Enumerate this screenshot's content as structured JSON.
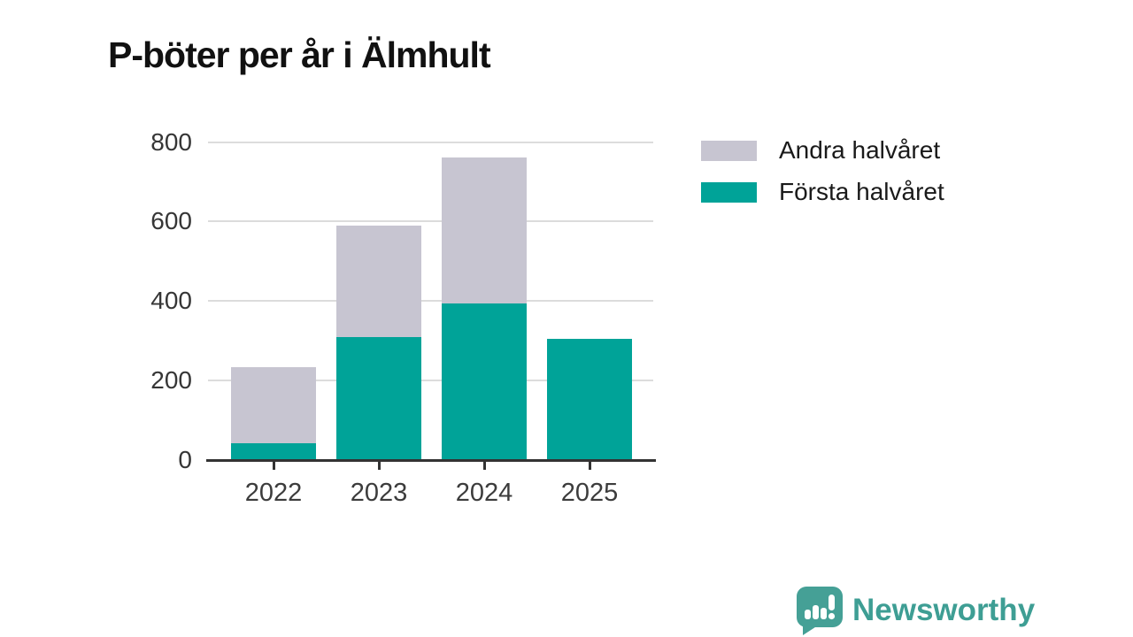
{
  "chart_data": {
    "type": "bar",
    "stacked": true,
    "title": "P-böter per år i Älmhult",
    "categories": [
      "2022",
      "2023",
      "2024",
      "2025"
    ],
    "series": [
      {
        "name": "Första halvåret",
        "color": "#00a398",
        "values": [
          42,
          309,
          394,
          304
        ]
      },
      {
        "name": "Andra halvåret",
        "color": "#c7c5d1",
        "values": [
          192,
          281,
          368,
          0
        ]
      }
    ],
    "yticks": [
      0,
      200,
      400,
      600,
      800
    ],
    "ylim": [
      0,
      800
    ],
    "xlabel": "",
    "ylabel": "",
    "grid": "horizontal",
    "legend_position": "top-right",
    "legend": [
      {
        "label": "Andra halvåret",
        "color": "#c7c5d1"
      },
      {
        "label": "Första halvåret",
        "color": "#00a398"
      }
    ]
  },
  "branding": {
    "logo_text": "Newsworthy",
    "logo_color": "#3e9e94",
    "logo_icon": "speech-bubble-bar-chart"
  },
  "colors": {
    "axis": "#333333",
    "gridline": "#dcdcdc",
    "title": "#111111"
  }
}
